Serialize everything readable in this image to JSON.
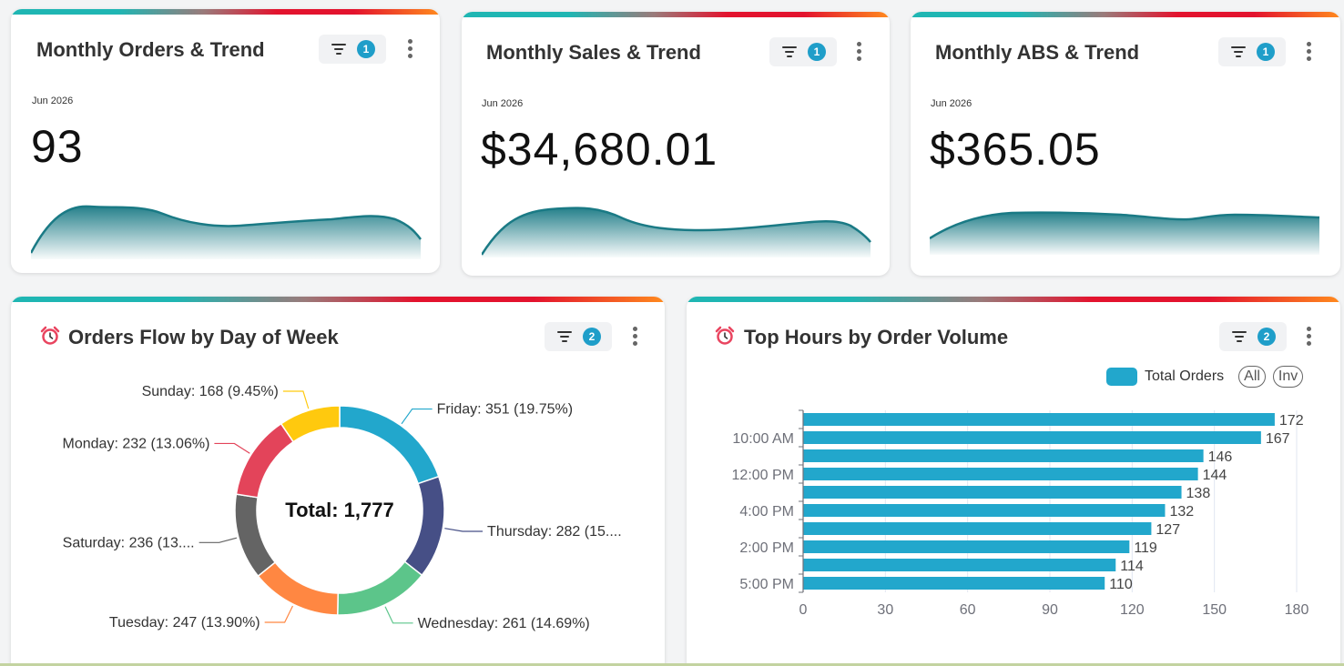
{
  "kpi_cards": [
    {
      "title": "Monthly Orders & Trend",
      "filter_count": "1",
      "period": "Jun 2026",
      "value": "93"
    },
    {
      "title": "Monthly Sales & Trend",
      "filter_count": "1",
      "period": "Jun 2026",
      "value": "$34,680.01"
    },
    {
      "title": "Monthly ABS & Trend",
      "filter_count": "1",
      "period": "Jun 2026",
      "value": "$365.05"
    }
  ],
  "donut_card": {
    "title": "Orders Flow by Day of Week",
    "filter_count": "2",
    "center_label": "Total: 1,777"
  },
  "bar_card": {
    "title": "Top Hours by Order Volume",
    "filter_count": "2",
    "legend_label": "Total Orders",
    "legend_all": "All",
    "legend_inv": "Inv"
  },
  "colors": {
    "accent": "#1fb6b3",
    "sparkline": "#1a7a85",
    "bar": "#22a7cc",
    "badge": "#1f9ec9"
  },
  "icons": [
    "filter-icon",
    "kebab-menu-icon",
    "alarm-clock-icon"
  ],
  "chart_data": [
    {
      "type": "pie",
      "title": "Orders Flow by Day of Week",
      "center_text": "Total: 1,777",
      "slices": [
        {
          "label": "Friday",
          "value": 351,
          "text": "Friday: 351 (19.75%)",
          "color": "#22a7cc"
        },
        {
          "label": "Thursday",
          "value": 282,
          "text": "Thursday: 282 (15....",
          "color": "#464f86"
        },
        {
          "label": "Wednesday",
          "value": 261,
          "text": "Wednesday: 261 (14.69%)",
          "color": "#5cc58a"
        },
        {
          "label": "Tuesday",
          "value": 247,
          "text": "Tuesday: 247 (13.90%)",
          "color": "#ff8742"
        },
        {
          "label": "Saturday",
          "value": 236,
          "text": "Saturday: 236 (13....",
          "color": "#646464"
        },
        {
          "label": "Monday",
          "value": 232,
          "text": "Monday: 232 (13.06%)",
          "color": "#e3445a"
        },
        {
          "label": "Sunday",
          "value": 168,
          "text": "Sunday: 168 (9.45%)",
          "color": "#ffc90e"
        }
      ]
    },
    {
      "type": "bar",
      "orientation": "horizontal",
      "title": "Top Hours by Order Volume",
      "series": [
        {
          "name": "Total Orders",
          "values": [
            172,
            167,
            146,
            144,
            138,
            132,
            127,
            119,
            114,
            110
          ]
        }
      ],
      "categories": [
        "",
        "10:00 AM",
        "",
        "12:00 PM",
        "",
        "4:00 PM",
        "",
        "2:00 PM",
        "",
        "5:00 PM"
      ],
      "xticks": [
        0,
        30,
        60,
        90,
        120,
        150,
        180
      ],
      "xlim": [
        0,
        180
      ],
      "grid": true,
      "legend_position": "top-right"
    }
  ]
}
